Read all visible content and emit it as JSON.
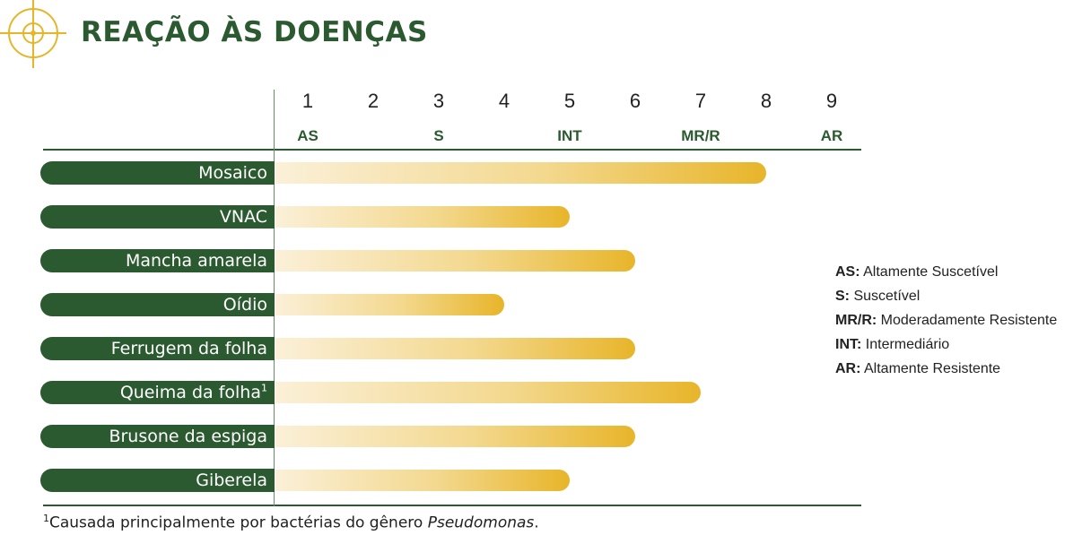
{
  "title": "REAÇÃO ÀS DOENÇAS",
  "chart_data": {
    "type": "bar",
    "orientation": "horizontal",
    "title": "REAÇÃO ÀS DOENÇAS",
    "x_ticks": [
      "1",
      "2",
      "3",
      "4",
      "5",
      "6",
      "7",
      "8",
      "9"
    ],
    "x_classes": [
      {
        "label": "AS",
        "at": 1
      },
      {
        "label": "S",
        "at": 3
      },
      {
        "label": "INT",
        "at": 5
      },
      {
        "label": "MR/R",
        "at": 7
      },
      {
        "label": "AR",
        "at": 9
      }
    ],
    "xlim": [
      0.5,
      9
    ],
    "categories": [
      "Mosaico",
      "VNAC",
      "Mancha amarela",
      "Oídio",
      "Ferrugem da folha",
      "Queima da folha",
      "Brusone da espiga",
      "Giberela"
    ],
    "category_superscripts": [
      "",
      "",
      "",
      "",
      "",
      "1",
      "",
      ""
    ],
    "values": [
      8,
      5,
      6,
      4,
      6,
      7,
      6,
      5
    ],
    "colors": {
      "label_bg": "#2b5a30",
      "bar_start": "#fbf0d8",
      "bar_end": "#e8b52a",
      "accent": "#e8b52a"
    }
  },
  "legend": [
    {
      "abbr": "AS:",
      "text": "Altamente Suscetível"
    },
    {
      "abbr": "S:",
      "text": "Suscetível"
    },
    {
      "abbr": "MR/R:",
      "text": "Moderadamente Resistente"
    },
    {
      "abbr": "INT:",
      "text": "Intermediário"
    },
    {
      "abbr": "AR:",
      "text": "Altamente Resistente"
    }
  ],
  "footnote": {
    "mark": "1",
    "text": "Causada principalmente por bactérias do gênero ",
    "italic": "Pseudomonas",
    "end": "."
  }
}
